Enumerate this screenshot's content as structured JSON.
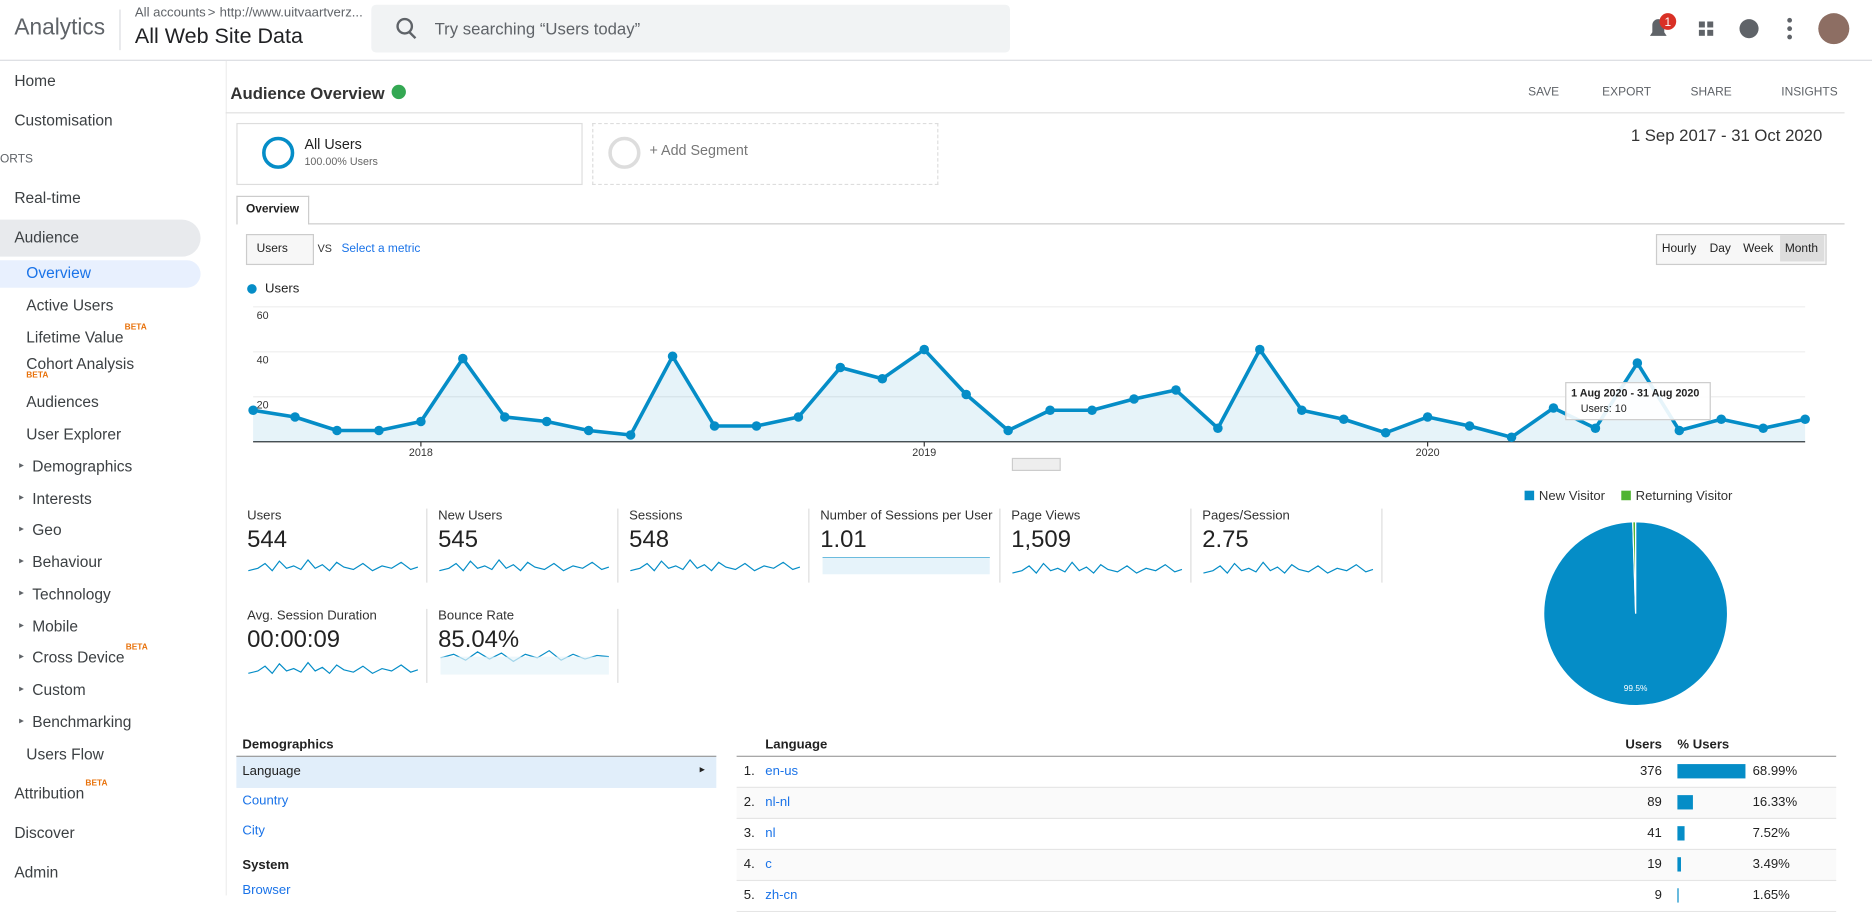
{
  "header": {
    "product": "Analytics",
    "breadcrumb": "All accounts",
    "separator": ">",
    "property": "http://www.uitvaartverz...",
    "view": "All Web Site Data",
    "search": "Try searching “Users today”",
    "notifications": "1"
  },
  "sidebar": [
    {
      "label": "Home"
    },
    {
      "label": "Customisation"
    },
    {
      "label": "ORTS"
    },
    {
      "label": "Real-time"
    },
    {
      "label": "Audience"
    },
    {
      "label": "Overview"
    },
    {
      "label": "Active Users"
    },
    {
      "label": "Lifetime Value",
      "beta": "BETA"
    },
    {
      "label": "Cohort Analysis",
      "beta": "BETA"
    },
    {
      "label": "Audiences"
    },
    {
      "label": "User Explorer"
    },
    {
      "label": "Demographics"
    },
    {
      "label": "Interests"
    },
    {
      "label": "Geo"
    },
    {
      "label": "Behaviour"
    },
    {
      "label": "Technology"
    },
    {
      "label": "Mobile"
    },
    {
      "label": "Cross Device",
      "beta": "BETA"
    },
    {
      "label": "Custom"
    },
    {
      "label": "Benchmarking"
    },
    {
      "label": "Users Flow"
    },
    {
      "label": "Attribution",
      "beta": "BETA"
    },
    {
      "label": "Discover"
    },
    {
      "label": "Admin"
    }
  ],
  "toolbar": {
    "title": "Audience Overview",
    "actions": [
      "SAVE",
      "EXPORT",
      "SHARE",
      "INSIGHTS"
    ],
    "date_range": "1 Sep 2017 - 31 Oct 2020"
  },
  "segments": {
    "name": "All Users",
    "share": "100.00% Users",
    "add": "+ Add Segment"
  },
  "tab": "Overview",
  "metric_select": "Users",
  "vs": "VS",
  "select_metric": "Select a metric",
  "granularity": [
    "Hourly",
    "Day",
    "Week",
    "Month"
  ],
  "chart_data": [
    {
      "type": "line",
      "categories": [
        null,
        null,
        null,
        null,
        "2018",
        null,
        null,
        null,
        null,
        null,
        null,
        null,
        null,
        null,
        null,
        null,
        "2019",
        null,
        null,
        null,
        null,
        null,
        null,
        null,
        null,
        null,
        null,
        null,
        "2020",
        null,
        null,
        null,
        null,
        null,
        null,
        null,
        null,
        null
      ],
      "series": [
        {
          "name": "Users",
          "color": "#058dc7",
          "values": [
            14,
            11,
            5,
            5,
            9,
            37,
            11,
            9,
            5,
            3,
            38,
            7,
            7,
            11,
            33,
            28,
            41,
            21,
            5,
            14,
            14,
            19,
            23,
            6,
            41,
            14,
            10,
            4,
            11,
            7,
            2,
            15,
            6,
            35,
            5,
            10,
            6,
            10
          ]
        }
      ],
      "ylim": [
        0,
        60
      ],
      "yticks": [
        20,
        40,
        60
      ],
      "grid": true,
      "tooltip": {
        "title": "1 Aug 2020 - 31 Aug 2020",
        "text": "Users: 10"
      }
    },
    {
      "type": "pie",
      "categories": [
        "New Visitor",
        "Returning Visitor"
      ],
      "values": [
        99.5,
        0.5
      ],
      "value_labels": [
        "99.5%",
        null
      ],
      "colors": [
        "#058dc7",
        "#50b432"
      ]
    }
  ],
  "metrics": [
    {
      "label": "Users",
      "value": "544"
    },
    {
      "label": "New Users",
      "value": "545"
    },
    {
      "label": "Sessions",
      "value": "548"
    },
    {
      "label": "Number of Sessions per User",
      "value": "1.01"
    },
    {
      "label": "Page Views",
      "value": "1,509"
    },
    {
      "label": "Pages/Session",
      "value": "2.75"
    },
    {
      "label": "Avg. Session Duration",
      "value": "00:00:09"
    },
    {
      "label": "Bounce Rate",
      "value": "85.04%"
    }
  ],
  "demographics": {
    "title": "Demographics",
    "items": [
      "Language",
      "Country",
      "City"
    ],
    "system": "System",
    "system_items": [
      "Browser"
    ]
  },
  "table": {
    "columns": [
      "Language",
      "Users",
      "% Users"
    ],
    "rows": [
      {
        "rank": "1.",
        "name": "en-us",
        "users": "376",
        "pct": 68.99,
        "pct_label": "68.99%"
      },
      {
        "rank": "2.",
        "name": "nl-nl",
        "users": "89",
        "pct": 16.33,
        "pct_label": "16.33%"
      },
      {
        "rank": "3.",
        "name": "nl",
        "users": "41",
        "pct": 7.52,
        "pct_label": "7.52%"
      },
      {
        "rank": "4.",
        "name": "c",
        "users": "19",
        "pct": 3.49,
        "pct_label": "3.49%"
      },
      {
        "rank": "5.",
        "name": "zh-cn",
        "users": "9",
        "pct": 1.65,
        "pct_label": "1.65%"
      }
    ]
  }
}
